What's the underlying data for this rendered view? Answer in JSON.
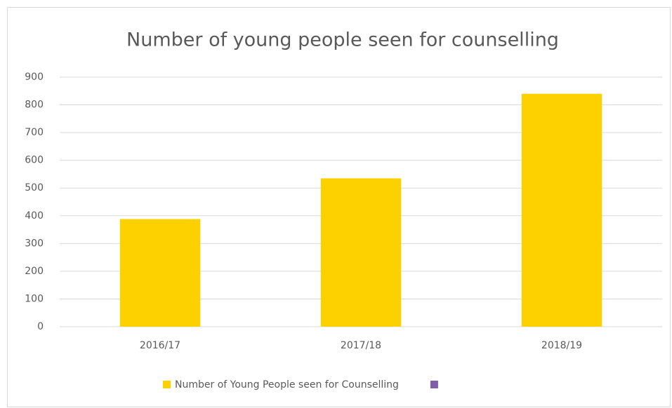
{
  "chart_data": {
    "type": "bar",
    "title": "Number of young people seen for counselling",
    "categories": [
      "2016/17",
      "2017/18",
      "2018/19"
    ],
    "series": [
      {
        "name": "Number of Young People seen for Counselling",
        "color": "#fdd000",
        "values": [
          388,
          535,
          840
        ]
      },
      {
        "color": "#7f5fa8",
        "values": [
          null,
          null,
          null
        ]
      }
    ],
    "ylim": [
      0,
      900
    ],
    "yticks": [
      0,
      100,
      200,
      300,
      400,
      500,
      600,
      700,
      800,
      900
    ],
    "grid": true,
    "legend": "bottom"
  }
}
